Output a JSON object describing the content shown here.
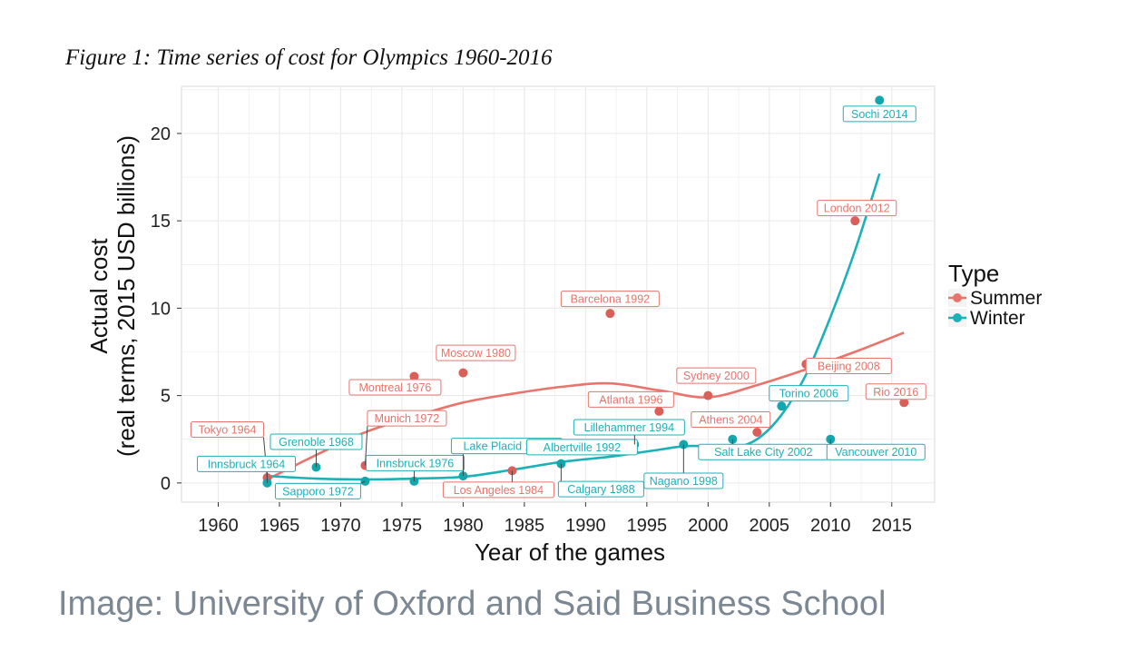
{
  "figure_title": "Figure 1: Time series of cost for Olympics 1960-2016",
  "credit": "Image: University of Oxford and Said Business School",
  "colors": {
    "Summer": "#e8746c",
    "Winter": "#1cb1b8",
    "panel": "#ffffff",
    "grid": "#ebebeb"
  },
  "chart_data": {
    "type": "scatter",
    "title": "",
    "xlabel": "Year of the games",
    "ylabel": [
      "Actual cost",
      "(real terms, 2015 USD billions)"
    ],
    "xlim": [
      1957,
      2018.5
    ],
    "ylim": [
      -1.1,
      22.7
    ],
    "xticks": [
      1960,
      1965,
      1970,
      1975,
      1980,
      1985,
      1990,
      1995,
      2000,
      2005,
      2010,
      2015
    ],
    "yticks": [
      0,
      5,
      10,
      15,
      20
    ],
    "grid": true,
    "legend": {
      "title": "Type",
      "position": "right",
      "entries": [
        "Summer",
        "Winter"
      ]
    },
    "series": [
      {
        "name": "Summer",
        "points": [
          {
            "x": 1964,
            "y": 0.3,
            "label": "Tokyo 1964"
          },
          {
            "x": 1972,
            "y": 1.0,
            "label": "Munich 1972"
          },
          {
            "x": 1976,
            "y": 6.1,
            "label": "Montreal 1976"
          },
          {
            "x": 1980,
            "y": 6.3,
            "label": "Moscow 1980"
          },
          {
            "x": 1984,
            "y": 0.7,
            "label": "Los Angeles 1984"
          },
          {
            "x": 1992,
            "y": 9.7,
            "label": "Barcelona 1992"
          },
          {
            "x": 1996,
            "y": 4.1,
            "label": "Atlanta 1996"
          },
          {
            "x": 2000,
            "y": 5.0,
            "label": "Sydney 2000"
          },
          {
            "x": 2004,
            "y": 2.9,
            "label": "Athens 2004"
          },
          {
            "x": 2008,
            "y": 6.8,
            "label": "Beijing 2008"
          },
          {
            "x": 2012,
            "y": 15.0,
            "label": "London 2012"
          },
          {
            "x": 2016,
            "y": 4.6,
            "label": "Rio 2016"
          }
        ],
        "trend": [
          [
            1964,
            0.2
          ],
          [
            1968,
            1.6
          ],
          [
            1972,
            2.9
          ],
          [
            1976,
            3.8
          ],
          [
            1980,
            4.6
          ],
          [
            1984,
            5.1
          ],
          [
            1988,
            5.5
          ],
          [
            1992,
            5.7
          ],
          [
            1996,
            5.3
          ],
          [
            2000,
            4.9
          ],
          [
            2004,
            5.6
          ],
          [
            2008,
            6.5
          ],
          [
            2012,
            7.5
          ],
          [
            2016,
            8.6
          ]
        ]
      },
      {
        "name": "Winter",
        "points": [
          {
            "x": 1964,
            "y": 0.0,
            "label": "Innsbruck 1964"
          },
          {
            "x": 1968,
            "y": 0.9,
            "label": "Grenoble 1968"
          },
          {
            "x": 1972,
            "y": 0.1,
            "label": "Sapporo 1972"
          },
          {
            "x": 1976,
            "y": 0.1,
            "label": "Innsbruck 1976"
          },
          {
            "x": 1980,
            "y": 0.4,
            "label": "Lake Placid 1980"
          },
          {
            "x": 1988,
            "y": 1.1,
            "label": "Calgary 1988"
          },
          {
            "x": 1992,
            "y": 2.0,
            "label": "Albertville 1992"
          },
          {
            "x": 1994,
            "y": 2.2,
            "label": "Lillehammer 1994"
          },
          {
            "x": 1998,
            "y": 2.2,
            "label": "Nagano 1998"
          },
          {
            "x": 2002,
            "y": 2.5,
            "label": "Salt Lake City 2002"
          },
          {
            "x": 2006,
            "y": 4.4,
            "label": "Torino 2006"
          },
          {
            "x": 2010,
            "y": 2.5,
            "label": "Vancouver 2010"
          },
          {
            "x": 2014,
            "y": 21.9,
            "label": "Sochi 2014"
          }
        ],
        "trend": [
          [
            1964,
            0.4
          ],
          [
            1968,
            0.25
          ],
          [
            1972,
            0.2
          ],
          [
            1976,
            0.25
          ],
          [
            1980,
            0.35
          ],
          [
            1984,
            0.75
          ],
          [
            1988,
            1.2
          ],
          [
            1992,
            1.5
          ],
          [
            1994,
            1.7
          ],
          [
            1996,
            1.9
          ],
          [
            1998,
            2.1
          ],
          [
            2000,
            2.1
          ],
          [
            2002,
            2.0
          ],
          [
            2004,
            2.5
          ],
          [
            2006,
            3.9
          ],
          [
            2008,
            6.2
          ],
          [
            2010,
            9.5
          ],
          [
            2012,
            13.3
          ],
          [
            2014,
            17.7
          ]
        ]
      }
    ]
  }
}
